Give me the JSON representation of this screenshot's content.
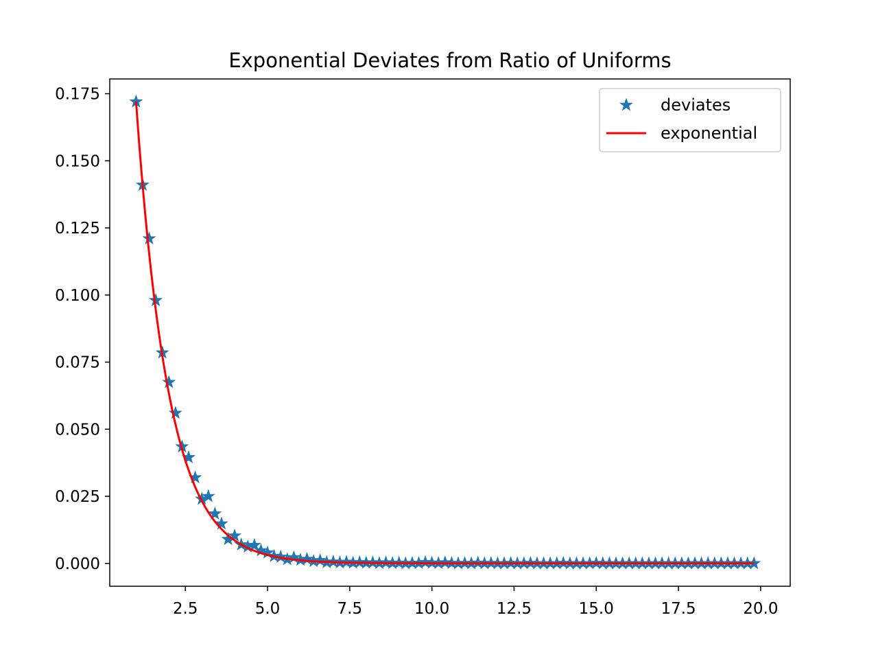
{
  "chart_data": {
    "type": "line",
    "title": "Exponential Deviates from Ratio of Uniforms",
    "xlabel": "",
    "ylabel": "",
    "xlim": [
      0.2,
      20.9
    ],
    "ylim": [
      -0.0085,
      0.1805
    ],
    "x_ticks": [
      2.5,
      5.0,
      7.5,
      10.0,
      12.5,
      15.0,
      17.5,
      20.0
    ],
    "x_tick_labels": [
      "2.5",
      "5.0",
      "7.5",
      "10.0",
      "12.5",
      "15.0",
      "17.5",
      "20.0"
    ],
    "y_ticks": [
      0.0,
      0.025,
      0.05,
      0.075,
      0.1,
      0.125,
      0.15,
      0.175
    ],
    "y_tick_labels": [
      "0.000",
      "0.025",
      "0.050",
      "0.075",
      "0.100",
      "0.125",
      "0.150",
      "0.175"
    ],
    "grid": false,
    "legend_position": "top-right",
    "series": [
      {
        "name": "deviates",
        "kind": "marker",
        "marker": "star",
        "color": "#1f77b4",
        "x": [
          1.0,
          1.2,
          1.4,
          1.6,
          1.8,
          2.0,
          2.2,
          2.4,
          2.6,
          2.8,
          3.0,
          3.2,
          3.4,
          3.6,
          3.8,
          4.0,
          4.2,
          4.4,
          4.6,
          4.8,
          5.0,
          5.2,
          5.4,
          5.6,
          5.8,
          6.0,
          6.2,
          6.4,
          6.6,
          6.8,
          7.0,
          7.2,
          7.4,
          7.6,
          7.8,
          8.0,
          8.2,
          8.4,
          8.6,
          8.8,
          9.0,
          9.2,
          9.4,
          9.6,
          9.8,
          10.0,
          10.2,
          10.4,
          10.6,
          10.8,
          11.0,
          11.2,
          11.4,
          11.6,
          11.8,
          12.0,
          12.2,
          12.4,
          12.6,
          12.8,
          13.0,
          13.2,
          13.4,
          13.6,
          13.8,
          14.0,
          14.2,
          14.4,
          14.6,
          14.8,
          15.0,
          15.2,
          15.4,
          15.6,
          15.8,
          16.0,
          16.2,
          16.4,
          16.6,
          16.8,
          17.0,
          17.2,
          17.4,
          17.6,
          17.8,
          18.0,
          18.2,
          18.4,
          18.6,
          18.8,
          19.0,
          19.2,
          19.4,
          19.6,
          19.8
        ],
        "y": [
          0.172,
          0.141,
          0.121,
          0.098,
          0.0785,
          0.0675,
          0.056,
          0.0435,
          0.0395,
          0.032,
          0.024,
          0.025,
          0.0185,
          0.0148,
          0.009,
          0.0103,
          0.007,
          0.0062,
          0.0068,
          0.0048,
          0.004,
          0.0027,
          0.0024,
          0.0015,
          0.0022,
          0.0013,
          0.0016,
          0.0008,
          0.0011,
          0.0004,
          0.0006,
          0.0003,
          0.0005,
          0.0002,
          0.0004,
          0.0002,
          0.0003,
          0.0001,
          0.0003,
          0.0001,
          0.0002,
          0.0,
          0.0001,
          0.0001,
          0.0004,
          0.0002,
          0.0001,
          0.0003,
          0.0001,
          0.0,
          0.0001,
          0.0,
          0.0002,
          0.0,
          0.0001,
          0.0,
          0.0,
          0.0001,
          0.0,
          0.0,
          0.0001,
          0.0,
          0.0,
          0.0,
          0.0,
          0.0001,
          0.0,
          0.0,
          0.0,
          0.0,
          0.0001,
          0.0,
          0.0,
          0.0,
          0.0,
          0.0,
          0.0,
          0.0,
          0.0,
          0.0,
          0.0,
          0.0,
          0.0,
          0.0,
          0.0,
          0.0,
          0.0,
          0.0,
          0.0,
          0.0,
          0.0,
          0.0,
          0.0,
          0.0,
          0.0
        ]
      },
      {
        "name": "exponential",
        "kind": "line",
        "color": "#ff0000",
        "function": "0.4677*exp(-x)",
        "x_range": [
          1.0,
          19.8
        ]
      }
    ]
  }
}
